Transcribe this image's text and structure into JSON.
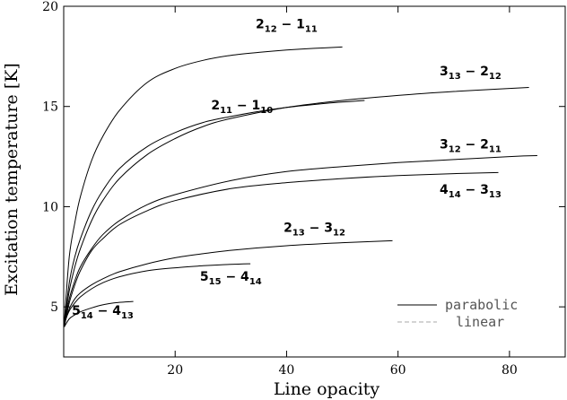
{
  "chart_data": {
    "type": "line",
    "title": "",
    "xlabel": "Line opacity",
    "ylabel": "Excitation temperature [K]",
    "xlim": [
      0,
      90
    ],
    "ylim": [
      2.5,
      20
    ],
    "xticks": [
      20,
      40,
      60,
      80
    ],
    "xtick_labels": [
      "20",
      "40",
      "60",
      "80"
    ],
    "yticks": [
      5,
      10,
      15,
      20
    ],
    "ytick_labels": [
      "5",
      "10",
      "15",
      "20"
    ],
    "grid": false,
    "legend": {
      "position": "bottom-right",
      "entries": [
        {
          "label": "parabolic",
          "style": "solid",
          "color": "#000000"
        },
        {
          "label": "linear",
          "style": "dashed",
          "color": "#aaaaaa"
        }
      ]
    },
    "series": [
      {
        "name": "2_12 - 1_11",
        "label_parts": [
          [
            "2",
            "n"
          ],
          [
            "12",
            "s"
          ],
          [
            " − 1",
            "n"
          ],
          [
            "11",
            "s"
          ]
        ],
        "x": [
          0.1,
          1,
          2,
          3,
          5,
          7,
          10,
          15,
          20,
          25,
          30,
          35,
          40,
          45,
          50
        ],
        "y": [
          4.2,
          7.5,
          9.2,
          10.5,
          12.3,
          13.5,
          14.8,
          16.2,
          16.9,
          17.3,
          17.55,
          17.7,
          17.82,
          17.9,
          17.97
        ]
      },
      {
        "name": "3_13 - 2_12",
        "label_parts": [
          [
            "3",
            "n"
          ],
          [
            "13",
            "s"
          ],
          [
            " − 2",
            "n"
          ],
          [
            "12",
            "s"
          ]
        ],
        "x": [
          0.1,
          1,
          2,
          3,
          5,
          7,
          10,
          15,
          20,
          25,
          30,
          40,
          50,
          60,
          70,
          80,
          83.5
        ],
        "y": [
          4.1,
          5.8,
          7.0,
          7.9,
          9.3,
          10.3,
          11.4,
          12.6,
          13.4,
          14.0,
          14.4,
          14.95,
          15.3,
          15.55,
          15.75,
          15.9,
          15.95
        ]
      },
      {
        "name": "2_11 - 1_10",
        "label_parts": [
          [
            "2",
            "n"
          ],
          [
            "11",
            "s"
          ],
          [
            " − 1",
            "n"
          ],
          [
            "10",
            "s"
          ]
        ],
        "x": [
          0.1,
          1,
          2,
          3,
          5,
          7,
          10,
          15,
          20,
          25,
          30,
          35,
          40,
          45,
          50,
          54
        ],
        "y": [
          4.0,
          6.2,
          7.5,
          8.4,
          9.8,
          10.8,
          11.9,
          13.0,
          13.7,
          14.2,
          14.5,
          14.75,
          14.95,
          15.1,
          15.22,
          15.3
        ]
      },
      {
        "name": "3_12 - 2_11",
        "label_parts": [
          [
            "3",
            "n"
          ],
          [
            "12",
            "s"
          ],
          [
            " − 2",
            "n"
          ],
          [
            "11",
            "s"
          ]
        ],
        "x": [
          0.1,
          1,
          2,
          3,
          5,
          7,
          10,
          15,
          20,
          30,
          40,
          50,
          60,
          70,
          80,
          85
        ],
        "y": [
          4.1,
          5.4,
          6.3,
          7.0,
          7.9,
          8.6,
          9.3,
          10.1,
          10.6,
          11.3,
          11.75,
          12.0,
          12.2,
          12.35,
          12.5,
          12.55
        ]
      },
      {
        "name": "4_14 - 3_13",
        "label_parts": [
          [
            "4",
            "n"
          ],
          [
            "14",
            "s"
          ],
          [
            " − 3",
            "n"
          ],
          [
            "13",
            "s"
          ]
        ],
        "x": [
          0.1,
          1,
          2,
          3,
          5,
          7,
          10,
          15,
          20,
          30,
          40,
          50,
          60,
          70,
          78
        ],
        "y": [
          4.0,
          5.2,
          6.1,
          6.8,
          7.8,
          8.4,
          9.1,
          9.8,
          10.3,
          10.9,
          11.2,
          11.4,
          11.55,
          11.65,
          11.7
        ]
      },
      {
        "name": "2_13 - 3_12",
        "label_parts": [
          [
            "2",
            "n"
          ],
          [
            "13",
            "s"
          ],
          [
            " − 3",
            "n"
          ],
          [
            "12",
            "s"
          ]
        ],
        "x": [
          0.1,
          1,
          2,
          3,
          5,
          7,
          10,
          15,
          20,
          25,
          30,
          40,
          50,
          59
        ],
        "y": [
          4.1,
          4.9,
          5.4,
          5.7,
          6.1,
          6.4,
          6.75,
          7.15,
          7.45,
          7.65,
          7.82,
          8.05,
          8.2,
          8.3
        ]
      },
      {
        "name": "5_15 - 4_14",
        "label_parts": [
          [
            "5",
            "n"
          ],
          [
            "15",
            "s"
          ],
          [
            " − 4",
            "n"
          ],
          [
            "14",
            "s"
          ]
        ],
        "x": [
          0.1,
          1,
          2,
          3,
          5,
          7,
          10,
          15,
          20,
          25,
          30,
          33.5
        ],
        "y": [
          4.2,
          4.8,
          5.2,
          5.5,
          5.9,
          6.2,
          6.5,
          6.8,
          6.95,
          7.05,
          7.12,
          7.15
        ]
      },
      {
        "name": "5_14 - 4_13",
        "label_parts": [
          [
            "5",
            "n"
          ],
          [
            "14",
            "s"
          ],
          [
            " − 4",
            "n"
          ],
          [
            "13",
            "s"
          ]
        ],
        "x": [
          0.1,
          1,
          2,
          3,
          5,
          7,
          9,
          12.5
        ],
        "y": [
          4.0,
          4.4,
          4.6,
          4.75,
          4.95,
          5.1,
          5.2,
          5.27
        ]
      }
    ],
    "curve_labels": [
      {
        "series": 0,
        "x": 40,
        "y": 18.9
      },
      {
        "series": 1,
        "x": 73,
        "y": 16.55
      },
      {
        "series": 2,
        "x": 32,
        "y": 14.85
      },
      {
        "series": 3,
        "x": 73,
        "y": 12.9
      },
      {
        "series": 4,
        "x": 73,
        "y": 10.65
      },
      {
        "series": 5,
        "x": 45,
        "y": 8.75
      },
      {
        "series": 6,
        "x": 30,
        "y": 6.3
      },
      {
        "series": 7,
        "x": 7,
        "y": 4.6
      }
    ]
  }
}
